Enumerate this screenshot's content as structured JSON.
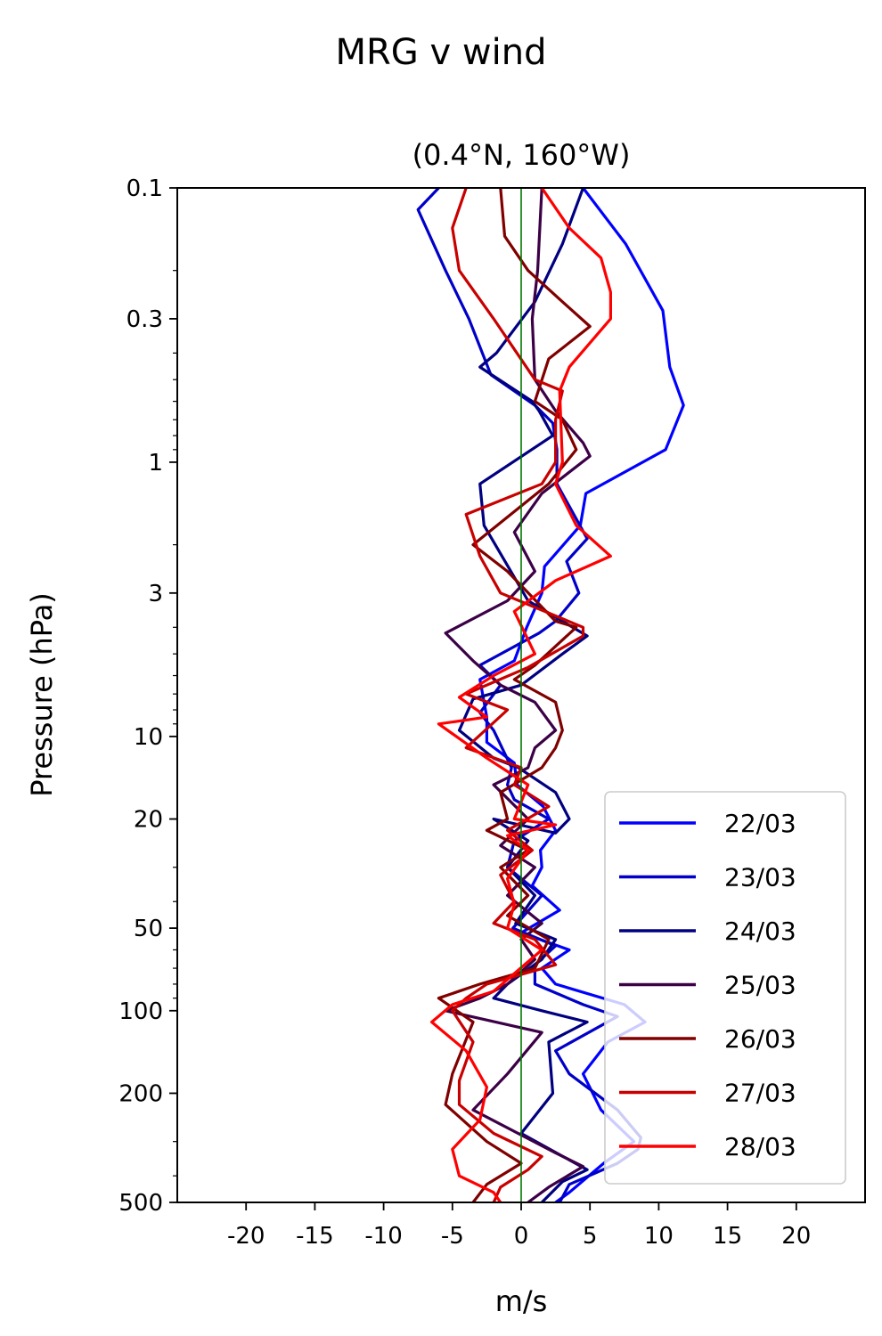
{
  "chart_data": {
    "type": "line",
    "suptitle": "MRG v wind",
    "title": "(0.4°N, 160°W)",
    "xlabel": "m/s",
    "ylabel": "Pressure (hPa)",
    "xlim": [
      -25,
      25
    ],
    "ylim": [
      500,
      0.1
    ],
    "yscale": "log",
    "xticks": [
      -20,
      -15,
      -10,
      -5,
      0,
      5,
      10,
      15,
      20
    ],
    "xtick_labels": [
      "-20",
      "-15",
      "-10",
      "-5",
      "0",
      "5",
      "10",
      "15",
      "20"
    ],
    "yticks": [
      0.1,
      0.3,
      1,
      3,
      10,
      20,
      50,
      100,
      200,
      500
    ],
    "ytick_labels": [
      "0.1",
      "0.3",
      "1",
      "3",
      "10",
      "20",
      "50",
      "100",
      "200",
      "500"
    ],
    "zero_line_color": "#007a00",
    "legend_position": "lower right",
    "grid": false,
    "series": [
      {
        "name": "22/03",
        "color": "#0000ff",
        "points": [
          [
            4.5,
            0.1
          ],
          [
            7.6,
            0.16
          ],
          [
            10.3,
            0.28
          ],
          [
            10.8,
            0.45
          ],
          [
            11.8,
            0.62
          ],
          [
            10.5,
            0.9
          ],
          [
            4.7,
            1.3
          ],
          [
            4.3,
            1.7
          ],
          [
            1.7,
            2.4
          ],
          [
            1.5,
            3.0
          ],
          [
            0.4,
            4.0
          ],
          [
            -0.5,
            5.3
          ],
          [
            -3.0,
            6.2
          ],
          [
            -2.5,
            8.5
          ],
          [
            -2.5,
            10.5
          ],
          [
            -0.5,
            12.5
          ],
          [
            -0.3,
            15.0
          ],
          [
            1.6,
            18.0
          ],
          [
            2.5,
            22.0
          ],
          [
            1.4,
            26.0
          ],
          [
            1.5,
            30.0
          ],
          [
            0.8,
            35.0
          ],
          [
            2.8,
            43.0
          ],
          [
            0.0,
            52.0
          ],
          [
            3.5,
            60.0
          ],
          [
            1.5,
            70.0
          ],
          [
            2.5,
            80.0
          ],
          [
            7.5,
            95.0
          ],
          [
            9.0,
            110.0
          ],
          [
            6.3,
            130.0
          ],
          [
            4.5,
            170.0
          ],
          [
            5.8,
            230.0
          ],
          [
            8.2,
            300.0
          ],
          [
            6.0,
            360.0
          ],
          [
            3.5,
            460.0
          ],
          [
            2.5,
            500.0
          ]
        ]
      },
      {
        "name": "23/03",
        "color": "#0000c8",
        "points": [
          [
            -6.0,
            0.1
          ],
          [
            -7.5,
            0.12
          ],
          [
            -5.5,
            0.2
          ],
          [
            -3.8,
            0.3
          ],
          [
            -2.2,
            0.48
          ],
          [
            1.0,
            0.62
          ],
          [
            2.3,
            0.72
          ],
          [
            2.6,
            0.9
          ],
          [
            2.6,
            1.2
          ],
          [
            4.8,
            1.9
          ],
          [
            3.3,
            2.3
          ],
          [
            4.2,
            3.0
          ],
          [
            2.5,
            3.8
          ],
          [
            1.3,
            4.2
          ],
          [
            -3.0,
            5.5
          ],
          [
            -1.5,
            6.5
          ],
          [
            -3.0,
            8.2
          ],
          [
            -2.0,
            9.5
          ],
          [
            -0.7,
            13.0
          ],
          [
            -1.0,
            15.0
          ],
          [
            -0.5,
            17.0
          ],
          [
            2.0,
            20.0
          ],
          [
            -0.5,
            24.0
          ],
          [
            -1.0,
            30.0
          ],
          [
            1.5,
            38.0
          ],
          [
            -0.6,
            50.0
          ],
          [
            2.5,
            58.0
          ],
          [
            1.0,
            68.0
          ],
          [
            1.0,
            80.0
          ],
          [
            4.5,
            95.0
          ],
          [
            7.0,
            105.0
          ],
          [
            2.5,
            140.0
          ],
          [
            3.5,
            170.0
          ],
          [
            7.0,
            230.0
          ],
          [
            8.7,
            290.0
          ],
          [
            8.5,
            320.0
          ],
          [
            7.0,
            360.0
          ],
          [
            3.5,
            430.0
          ],
          [
            2.8,
            500.0
          ]
        ]
      },
      {
        "name": "24/03",
        "color": "#000080",
        "points": [
          [
            4.5,
            0.1
          ],
          [
            3.0,
            0.16
          ],
          [
            1.0,
            0.26
          ],
          [
            -1.8,
            0.4
          ],
          [
            -3.0,
            0.45
          ],
          [
            0.8,
            0.6
          ],
          [
            1.3,
            0.65
          ],
          [
            2.3,
            0.8
          ],
          [
            -3.0,
            1.2
          ],
          [
            -2.7,
            1.7
          ],
          [
            0.5,
            3.2
          ],
          [
            4.8,
            4.3
          ],
          [
            3.0,
            5.0
          ],
          [
            0.0,
            6.5
          ],
          [
            -3.5,
            7.3
          ],
          [
            -4.5,
            9.5
          ],
          [
            -2.0,
            12.0
          ],
          [
            -0.2,
            13.0
          ],
          [
            2.5,
            16.0
          ],
          [
            3.5,
            20.0
          ],
          [
            2.5,
            22.5
          ],
          [
            -2.0,
            20.0
          ],
          [
            0.5,
            24.0
          ],
          [
            -1.0,
            30.0
          ],
          [
            1.0,
            38.0
          ],
          [
            -0.4,
            48.0
          ],
          [
            2.5,
            55.0
          ],
          [
            1.5,
            65.0
          ],
          [
            -1.0,
            80.0
          ],
          [
            -2.0,
            90.0
          ],
          [
            1.5,
            100.0
          ],
          [
            4.8,
            110.0
          ],
          [
            2.0,
            130.0
          ],
          [
            2.3,
            200.0
          ],
          [
            0.0,
            280.0
          ],
          [
            3.5,
            350.0
          ],
          [
            4.8,
            380.0
          ],
          [
            3.0,
            420.0
          ],
          [
            1.5,
            500.0
          ]
        ]
      },
      {
        "name": "25/03",
        "color": "#3c0046",
        "points": [
          [
            1.5,
            0.1
          ],
          [
            1.2,
            0.2
          ],
          [
            0.8,
            0.3
          ],
          [
            1.0,
            0.5
          ],
          [
            2.5,
            0.65
          ],
          [
            4.5,
            0.85
          ],
          [
            5.0,
            0.95
          ],
          [
            1.5,
            1.3
          ],
          [
            -0.5,
            1.8
          ],
          [
            1.0,
            2.5
          ],
          [
            -1.0,
            3.2
          ],
          [
            -5.5,
            4.2
          ],
          [
            -3.5,
            5.3
          ],
          [
            -1.5,
            6.5
          ],
          [
            1.0,
            7.5
          ],
          [
            2.5,
            9.5
          ],
          [
            1.0,
            11.0
          ],
          [
            0.5,
            13.0
          ],
          [
            -2.0,
            15.0
          ],
          [
            0.5,
            20.0
          ],
          [
            -1.5,
            25.0
          ],
          [
            1.0,
            30.0
          ],
          [
            -1.0,
            38.0
          ],
          [
            1.5,
            48.0
          ],
          [
            0.0,
            55.0
          ],
          [
            1.0,
            65.0
          ],
          [
            -1.0,
            80.0
          ],
          [
            -3.0,
            90.0
          ],
          [
            -5.5,
            100.0
          ],
          [
            1.5,
            120.0
          ],
          [
            -1.0,
            170.0
          ],
          [
            -3.5,
            230.0
          ],
          [
            2.5,
            330.0
          ],
          [
            4.5,
            370.0
          ],
          [
            2.0,
            440.0
          ],
          [
            0.5,
            500.0
          ]
        ]
      },
      {
        "name": "26/03",
        "color": "#800000",
        "points": [
          [
            -1.5,
            0.1
          ],
          [
            -1.2,
            0.15
          ],
          [
            0.5,
            0.2
          ],
          [
            3.0,
            0.26
          ],
          [
            5.0,
            0.32
          ],
          [
            2.0,
            0.42
          ],
          [
            1.0,
            0.6
          ],
          [
            3.0,
            0.7
          ],
          [
            4.0,
            0.9
          ],
          [
            2.0,
            1.2
          ],
          [
            -3.5,
            2.0
          ],
          [
            -1.0,
            2.5
          ],
          [
            2.5,
            3.8
          ],
          [
            4.0,
            4.0
          ],
          [
            1.0,
            5.5
          ],
          [
            -0.5,
            6.2
          ],
          [
            2.5,
            7.5
          ],
          [
            3.0,
            9.5
          ],
          [
            2.5,
            11.0
          ],
          [
            1.5,
            13.0
          ],
          [
            -1.5,
            16.0
          ],
          [
            -1.0,
            20.0
          ],
          [
            -2.5,
            22.0
          ],
          [
            0.5,
            26.0
          ],
          [
            -1.5,
            30.0
          ],
          [
            0.5,
            38.0
          ],
          [
            -1.0,
            45.0
          ],
          [
            2.0,
            55.0
          ],
          [
            1.0,
            70.0
          ],
          [
            -3.0,
            80.0
          ],
          [
            -6.0,
            90.0
          ],
          [
            -3.5,
            110.0
          ],
          [
            -5.0,
            170.0
          ],
          [
            -5.5,
            220.0
          ],
          [
            -2.5,
            300.0
          ],
          [
            0.0,
            360.0
          ],
          [
            -2.5,
            430.0
          ],
          [
            -3.5,
            500.0
          ]
        ]
      },
      {
        "name": "27/03",
        "color": "#c80000",
        "points": [
          [
            -4.0,
            0.1
          ],
          [
            -5.0,
            0.14
          ],
          [
            -4.5,
            0.2
          ],
          [
            -2.0,
            0.3
          ],
          [
            1.0,
            0.5
          ],
          [
            3.0,
            0.55
          ],
          [
            2.5,
            0.7
          ],
          [
            2.5,
            1.0
          ],
          [
            1.5,
            1.2
          ],
          [
            -4.0,
            1.55
          ],
          [
            -3.0,
            2.2
          ],
          [
            -1.5,
            3.0
          ],
          [
            4.5,
            4.0
          ],
          [
            4.5,
            4.3
          ],
          [
            0.5,
            5.6
          ],
          [
            -4.0,
            7.0
          ],
          [
            -1.0,
            8.0
          ],
          [
            -4.0,
            11.0
          ],
          [
            0.0,
            13.0
          ],
          [
            -0.5,
            15.0
          ],
          [
            2.0,
            18.0
          ],
          [
            -1.0,
            22.0
          ],
          [
            0.8,
            26.0
          ],
          [
            -1.5,
            32.0
          ],
          [
            -0.5,
            40.0
          ],
          [
            -2.0,
            48.0
          ],
          [
            1.0,
            55.0
          ],
          [
            2.5,
            68.0
          ],
          [
            -2.5,
            80.0
          ],
          [
            -4.0,
            90.0
          ],
          [
            -5.0,
            100.0
          ],
          [
            -3.5,
            130.0
          ],
          [
            -4.5,
            180.0
          ],
          [
            -4.5,
            220.0
          ],
          [
            -2.0,
            280.0
          ],
          [
            1.5,
            340.0
          ],
          [
            0.5,
            380.0
          ],
          [
            -1.5,
            440.0
          ],
          [
            -2.0,
            500.0
          ]
        ]
      },
      {
        "name": "28/03",
        "color": "#ff0000",
        "points": [
          [
            1.5,
            0.1
          ],
          [
            3.5,
            0.14
          ],
          [
            5.8,
            0.18
          ],
          [
            6.5,
            0.24
          ],
          [
            6.5,
            0.3
          ],
          [
            3.5,
            0.45
          ],
          [
            2.8,
            0.55
          ],
          [
            3.0,
            1.0
          ],
          [
            2.5,
            1.2
          ],
          [
            4.0,
            1.7
          ],
          [
            6.5,
            2.2
          ],
          [
            2.5,
            2.7
          ],
          [
            -0.5,
            3.5
          ],
          [
            1.0,
            5.0
          ],
          [
            -2.0,
            6.0
          ],
          [
            -4.5,
            7.2
          ],
          [
            -2.5,
            8.5
          ],
          [
            -6.0,
            9.0
          ],
          [
            -2.5,
            12.0
          ],
          [
            0.5,
            15.0
          ],
          [
            -0.5,
            20.0
          ],
          [
            2.5,
            21.0
          ],
          [
            -1.0,
            23.0
          ],
          [
            0.5,
            26.0
          ],
          [
            -1.0,
            33.0
          ],
          [
            -0.5,
            41.0
          ],
          [
            -1.0,
            50.0
          ],
          [
            1.5,
            60.0
          ],
          [
            -2.0,
            85.0
          ],
          [
            -5.0,
            95.0
          ],
          [
            -6.5,
            110.0
          ],
          [
            -4.0,
            140.0
          ],
          [
            -2.5,
            190.0
          ],
          [
            -3.0,
            250.0
          ],
          [
            -5.0,
            320.0
          ],
          [
            -4.5,
            400.0
          ],
          [
            -2.0,
            460.0
          ],
          [
            -1.5,
            500.0
          ]
        ]
      }
    ]
  }
}
